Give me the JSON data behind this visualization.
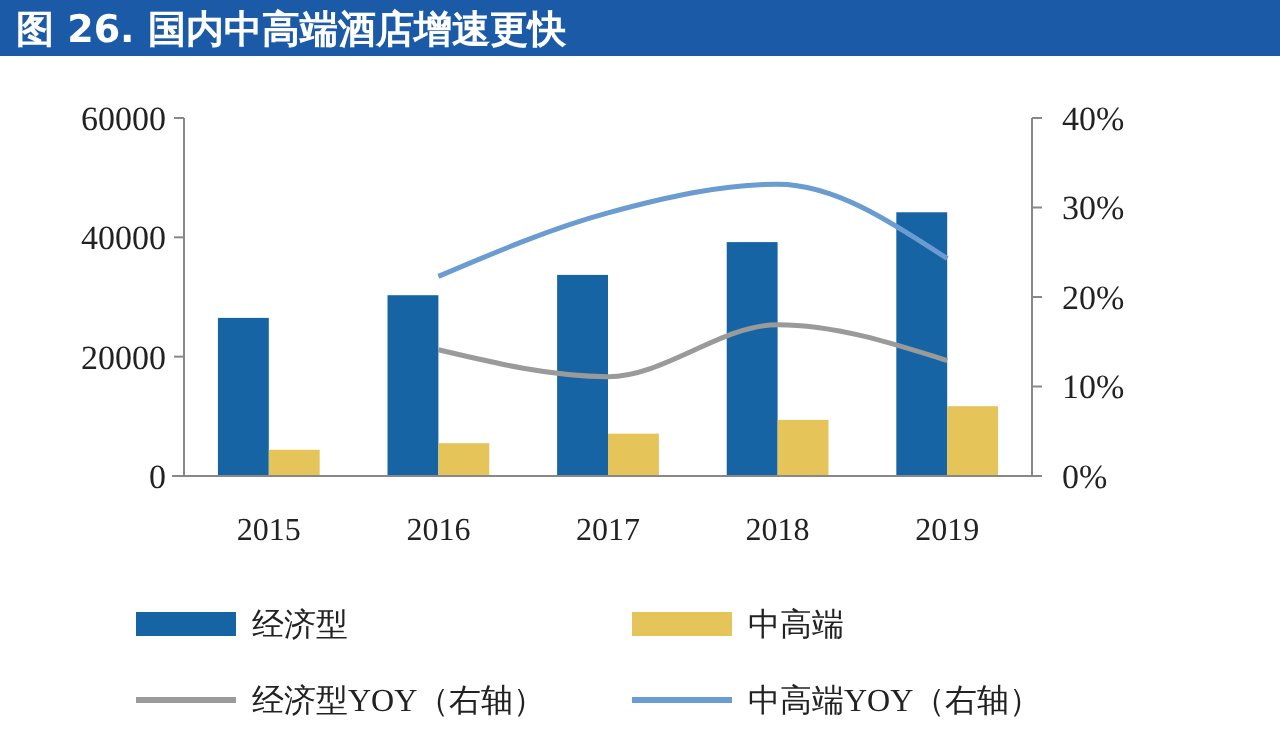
{
  "chart_data": {
    "type": "bar",
    "title": "图 26. 国内中高端酒店增速更快",
    "categories": [
      "2015",
      "2016",
      "2017",
      "2018",
      "2019"
    ],
    "series": [
      {
        "name": "经济型",
        "color": "#1764a5",
        "values": [
          26500,
          30300,
          33700,
          39200,
          44200
        ]
      },
      {
        "name": "中高端",
        "color": "#e5c55a",
        "values": [
          4400,
          5500,
          7100,
          9400,
          11700
        ]
      },
      {
        "name": "经济型YOY（右轴）",
        "type": "line",
        "axis": "y2",
        "color": "#9a9a9a",
        "values": [
          null,
          14.1,
          11.1,
          16.9,
          12.9
        ]
      },
      {
        "name": "中高端YOY（右轴）",
        "type": "line",
        "axis": "y2",
        "color": "#6a9bd1",
        "values": [
          null,
          22.3,
          29.4,
          32.6,
          24.3
        ]
      }
    ],
    "ylim": [
      0,
      60000
    ],
    "yticks": [
      0,
      20000,
      40000,
      60000
    ],
    "y2lim": [
      0,
      40
    ],
    "y2ticks": [
      {
        "value": 0,
        "label": "0%"
      },
      {
        "value": 10,
        "label": "10%"
      },
      {
        "value": 20,
        "label": "20%"
      },
      {
        "value": 30,
        "label": "30%"
      },
      {
        "value": 40,
        "label": "40%"
      }
    ],
    "grid": false,
    "legend": "bottom",
    "marker": "none",
    "line_style": "solid"
  }
}
